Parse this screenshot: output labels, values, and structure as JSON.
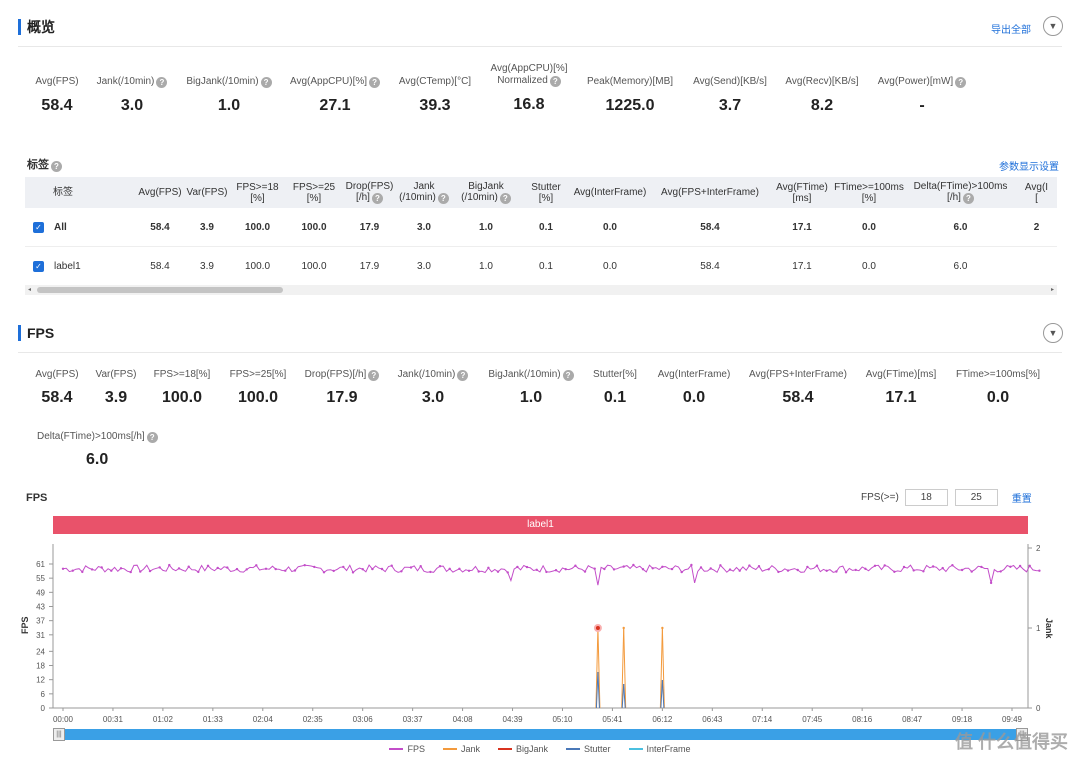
{
  "overview": {
    "title": "概览",
    "export_label": "导出全部",
    "metrics": [
      {
        "label": "Avg(FPS)",
        "value": "58.4",
        "help": false
      },
      {
        "label": "Jank(/10min)",
        "value": "3.0",
        "help": true
      },
      {
        "label": "BigJank(/10min)",
        "value": "1.0",
        "help": true
      },
      {
        "label": "Avg(AppCPU)[%]",
        "value": "27.1",
        "help": true
      },
      {
        "label": "Avg(CTemp)[°C]",
        "value": "39.3",
        "help": false
      },
      {
        "label": "Avg(AppCPU)[%]",
        "label2": "Normalized",
        "value": "16.8",
        "help": true
      },
      {
        "label": "Peak(Memory)[MB]",
        "value": "1225.0",
        "help": false
      },
      {
        "label": "Avg(Send)[KB/s]",
        "value": "3.7",
        "help": false
      },
      {
        "label": "Avg(Recv)[KB/s]",
        "value": "8.2",
        "help": false
      },
      {
        "label": "Avg(Power)[mW]",
        "value": "-",
        "help": true
      }
    ]
  },
  "tags": {
    "title": "标签",
    "settings_label": "参数显示设置",
    "columns": [
      "标签",
      "Avg(FPS)",
      "Var(FPS)",
      "FPS>=18\n[%]",
      "FPS>=25\n[%]",
      "Drop(FPS)\n[/h]",
      "Jank\n(/10min)",
      "BigJank\n(/10min)",
      "Stutter\n[%]",
      "Avg(InterFrame)",
      "Avg(FPS+InterFrame)",
      "Avg(FTime)\n[ms]",
      "FTime>=100ms\n[%]",
      "Delta(FTime)>100ms\n[/h]",
      "Avg(I\n["
    ],
    "rows": [
      {
        "name": "All",
        "bold": true,
        "cells": [
          "58.4",
          "3.9",
          "100.0",
          "100.0",
          "17.9",
          "3.0",
          "1.0",
          "0.1",
          "0.0",
          "58.4",
          "17.1",
          "0.0",
          "6.0",
          "2"
        ]
      },
      {
        "name": "label1",
        "bold": false,
        "cells": [
          "58.4",
          "3.9",
          "100.0",
          "100.0",
          "17.9",
          "3.0",
          "1.0",
          "0.1",
          "0.0",
          "58.4",
          "17.1",
          "0.0",
          "6.0",
          ""
        ]
      }
    ]
  },
  "fps_section": {
    "title": "FPS",
    "metrics": [
      {
        "label": "Avg(FPS)",
        "value": "58.4",
        "help": false
      },
      {
        "label": "Var(FPS)",
        "value": "3.9",
        "help": false
      },
      {
        "label": "FPS>=18[%]",
        "value": "100.0",
        "help": false
      },
      {
        "label": "FPS>=25[%]",
        "value": "100.0",
        "help": false
      },
      {
        "label": "Drop(FPS)[/h]",
        "value": "17.9",
        "help": true
      },
      {
        "label": "Jank(/10min)",
        "value": "3.0",
        "help": true
      },
      {
        "label": "BigJank(/10min)",
        "value": "1.0",
        "help": true
      },
      {
        "label": "Stutter[%]",
        "value": "0.1",
        "help": false
      },
      {
        "label": "Avg(InterFrame)",
        "value": "0.0",
        "help": false
      },
      {
        "label": "Avg(FPS+InterFrame)",
        "value": "58.4",
        "help": false
      },
      {
        "label": "Avg(FTime)[ms]",
        "value": "17.1",
        "help": false
      },
      {
        "label": "FTime>=100ms[%]",
        "value": "0.0",
        "help": false
      },
      {
        "label": "Delta(FTime)>100ms[/h]",
        "value": "6.0",
        "help": true
      }
    ],
    "chart_title": "FPS",
    "fps_threshold_label": "FPS(>=)",
    "threshold_1": "18",
    "threshold_2": "25",
    "reset_label": "重置",
    "band_label": "label1"
  },
  "chart_data": {
    "type": "line",
    "x_ticks": [
      "00:00",
      "00:31",
      "01:02",
      "01:33",
      "02:04",
      "02:35",
      "03:06",
      "03:37",
      "04:08",
      "04:39",
      "05:10",
      "05:41",
      "06:12",
      "06:43",
      "07:14",
      "07:45",
      "08:16",
      "08:47",
      "09:18",
      "09:49"
    ],
    "y_ticks": [
      0,
      6,
      12,
      18,
      24,
      31,
      37,
      43,
      49,
      55,
      61
    ],
    "y_right_ticks": [
      0,
      1,
      2
    ],
    "ylabel": "FPS",
    "y2label": "Jank",
    "ylim": [
      0,
      61
    ],
    "y2lim": [
      0,
      2
    ],
    "fps_baseline": 59,
    "fps_dips": [
      {
        "t": "05:32",
        "fps": 52
      },
      {
        "t": "09:36",
        "fps": 53
      },
      {
        "t": "04:38",
        "fps": 54
      },
      {
        "t": "06:32",
        "fps": 53
      }
    ],
    "jank_events": [
      {
        "t": "05:32",
        "value": 1
      },
      {
        "t": "05:48",
        "value": 1
      },
      {
        "t": "06:12",
        "value": 1
      }
    ],
    "stutter_events": [
      {
        "t": "05:32",
        "value": 0.45
      },
      {
        "t": "05:48",
        "value": 0.3
      },
      {
        "t": "06:12",
        "value": 0.35
      }
    ],
    "series": [
      {
        "name": "FPS",
        "color": "#c34ec9"
      },
      {
        "name": "Jank",
        "color": "#f39a3c"
      },
      {
        "name": "BigJank",
        "color": "#d9331f"
      },
      {
        "name": "Stutter",
        "color": "#4a78b8"
      },
      {
        "name": "InterFrame",
        "color": "#4bc0e0"
      }
    ]
  },
  "watermark": "值 什么值得买"
}
